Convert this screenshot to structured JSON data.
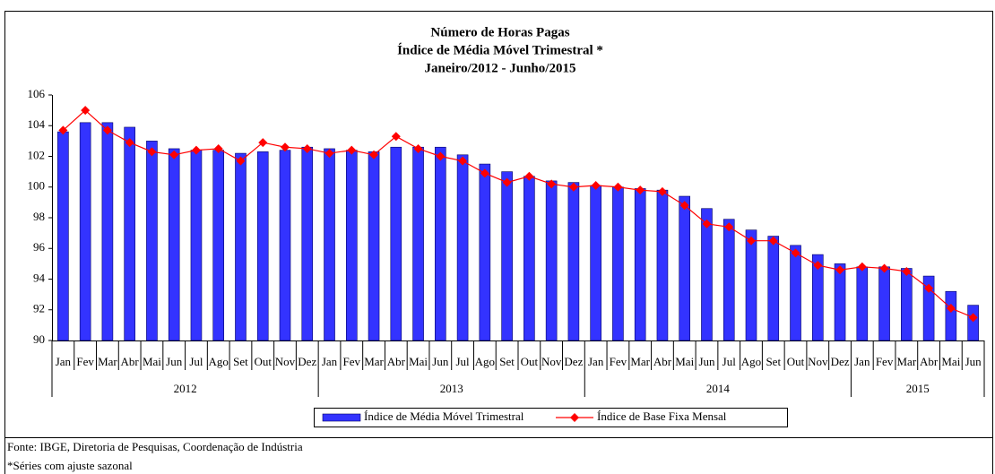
{
  "chart_data": {
    "type": "bar_line",
    "title": [
      "Número de Horas Pagas",
      "Índice de Média Móvel Trimestral *",
      "Janeiro/2012 - Junho/2015"
    ],
    "category_groups": [
      {
        "label": "2012",
        "categories": [
          "Jan",
          "Fev",
          "Mar",
          "Abr",
          "Mai",
          "Jun",
          "Jul",
          "Ago",
          "Set",
          "Out",
          "Nov",
          "Dez"
        ]
      },
      {
        "label": "2013",
        "categories": [
          "Jan",
          "Fev",
          "Mar",
          "Abr",
          "Mai",
          "Jun",
          "Jul",
          "Ago",
          "Set",
          "Out",
          "Nov",
          "Dez"
        ]
      },
      {
        "label": "2014",
        "categories": [
          "Jan",
          "Fev",
          "Mar",
          "Abr",
          "Mai",
          "Jun",
          "Jul",
          "Ago",
          "Set",
          "Out",
          "Nov",
          "Dez"
        ]
      },
      {
        "label": "2015",
        "categories": [
          "Jan",
          "Fev",
          "Mar",
          "Abr",
          "Mai",
          "Jun"
        ]
      }
    ],
    "series": [
      {
        "name": "Índice de Média Móvel Trimestral",
        "type": "bar",
        "color": "#3333ff",
        "values": [
          103.6,
          104.2,
          104.2,
          103.9,
          103.0,
          102.5,
          102.4,
          102.4,
          102.2,
          102.3,
          102.4,
          102.6,
          102.5,
          102.4,
          102.3,
          102.6,
          102.6,
          102.6,
          102.1,
          101.5,
          101.0,
          100.7,
          100.4,
          100.3,
          100.1,
          100.0,
          99.9,
          99.8,
          99.4,
          98.6,
          97.9,
          97.2,
          96.8,
          96.2,
          95.6,
          95.0,
          94.8,
          94.8,
          94.7,
          94.2,
          93.2,
          92.3
        ]
      },
      {
        "name": "Índice de Base Fixa Mensal",
        "type": "line",
        "color": "#ff0000",
        "values": [
          103.7,
          105.0,
          103.7,
          102.9,
          102.3,
          102.1,
          102.4,
          102.5,
          101.7,
          102.9,
          102.6,
          102.5,
          102.2,
          102.4,
          102.1,
          103.3,
          102.5,
          102.0,
          101.7,
          100.9,
          100.3,
          100.7,
          100.2,
          100.0,
          100.1,
          100.0,
          99.8,
          99.7,
          98.8,
          97.6,
          97.4,
          96.5,
          96.5,
          95.7,
          94.9,
          94.6,
          94.8,
          94.7,
          94.5,
          93.4,
          92.1,
          91.5
        ]
      }
    ],
    "ylim": [
      90,
      106
    ],
    "yticks": [
      90,
      92,
      94,
      96,
      98,
      100,
      102,
      104,
      106
    ],
    "grid": false,
    "notes": [
      "Fonte: IBGE, Diretoria de Pesquisas, Coordenação de Indústria",
      "*Séries com ajuste sazonal"
    ]
  }
}
